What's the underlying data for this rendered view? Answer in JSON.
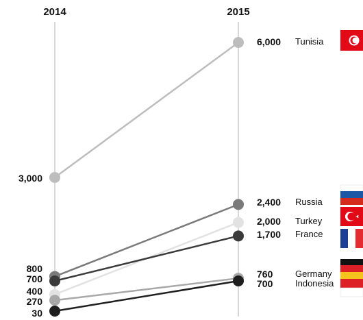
{
  "chart_data": {
    "type": "slope",
    "title": "",
    "categories": [
      "2014",
      "2015"
    ],
    "series": [
      {
        "name": "Tunisia",
        "values": [
          3000,
          6000
        ],
        "color": "#bdbdbd",
        "flag": "tunisia-flag"
      },
      {
        "name": "Russia",
        "values": [
          800,
          2400
        ],
        "color": "#7a7a7a",
        "flag": "russia-flag"
      },
      {
        "name": "Turkey",
        "values": [
          400,
          2000
        ],
        "color": "#e2e2e2",
        "flag": "turkey-flag"
      },
      {
        "name": "France",
        "values": [
          700,
          1700
        ],
        "color": "#3a3a3a",
        "flag": "france-flag"
      },
      {
        "name": "Germany",
        "values": [
          270,
          760
        ],
        "color": "#a8a8a8",
        "flag": "germany-flag"
      },
      {
        "name": "Indonesia",
        "values": [
          30,
          700
        ],
        "color": "#1e1e1e",
        "flag": "indonesia-flag"
      }
    ],
    "left_labels": [
      "3,000",
      "800",
      "700",
      "400",
      "270",
      "30"
    ],
    "right_labels": [
      "6,000",
      "2,400",
      "2,000",
      "1,700",
      "760",
      "700"
    ],
    "grid": false,
    "legend": "right"
  },
  "colors": {
    "axis": "#cccccc",
    "text": "#111111"
  }
}
